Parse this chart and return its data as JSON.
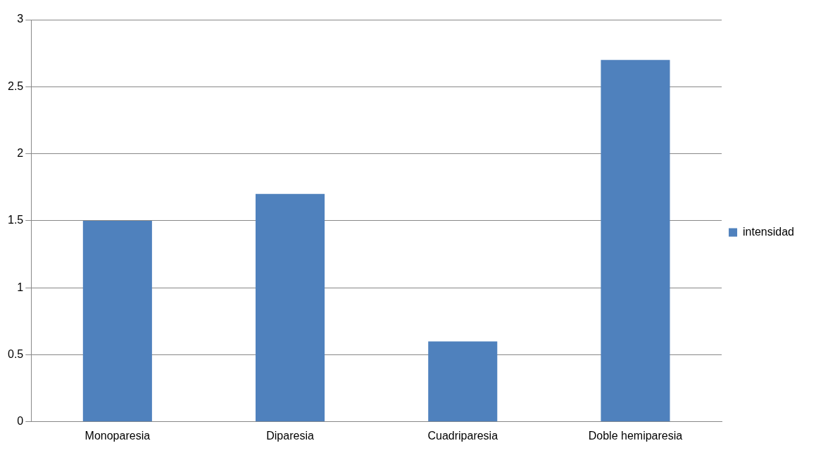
{
  "chart_data": {
    "type": "bar",
    "categories": [
      "Monoparesia",
      "Diparesia",
      "Cuadriparesia",
      "Doble hemiparesia"
    ],
    "series": [
      {
        "name": "intensidad",
        "color": "#4f81bd",
        "values": [
          1.5,
          1.7,
          0.6,
          2.7
        ]
      }
    ],
    "ylim": [
      0,
      3
    ],
    "yticks": [
      0,
      0.5,
      1,
      1.5,
      2,
      2.5,
      3
    ],
    "grid": "y",
    "legend": "right"
  }
}
